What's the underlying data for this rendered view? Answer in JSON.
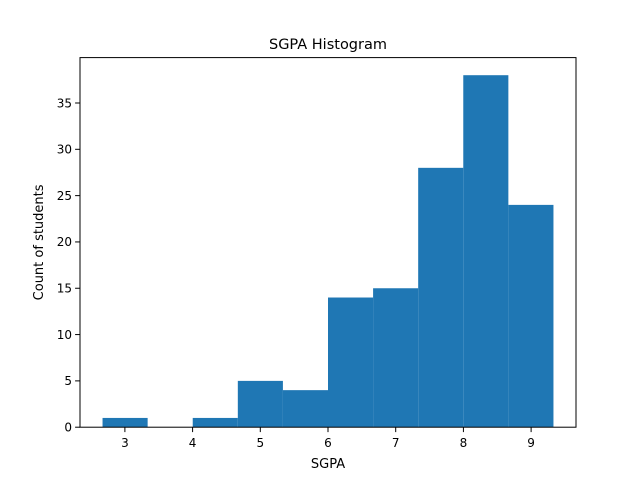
{
  "chart_data": {
    "type": "bar",
    "title": "SGPA Histogram",
    "xlabel": "SGPA",
    "ylabel": "Count of students",
    "bin_edges": [
      2.67,
      3.336,
      4.002,
      4.668,
      5.334,
      6.0,
      6.666,
      7.332,
      7.998,
      8.664,
      9.33
    ],
    "values": [
      1,
      0,
      1,
      5,
      4,
      14,
      15,
      28,
      38,
      24
    ],
    "xlim": [
      2.337,
      9.663
    ],
    "ylim": [
      0,
      39.9
    ],
    "xticks": [
      3,
      4,
      5,
      6,
      7,
      8,
      9
    ],
    "yticks": [
      0,
      5,
      10,
      15,
      20,
      25,
      30,
      35
    ],
    "grid": false,
    "bar_color": "#1f77b4"
  }
}
